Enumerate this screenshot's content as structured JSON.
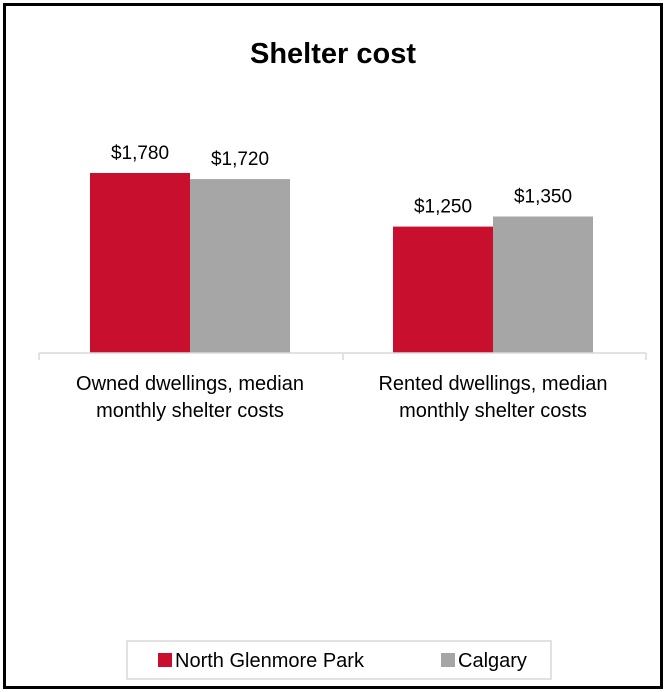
{
  "chart_data": {
    "type": "bar",
    "title": "Shelter cost",
    "categories": [
      [
        "Owned dwellings, median",
        "monthly shelter costs"
      ],
      [
        "Rented dwellings, median",
        "monthly shelter costs"
      ]
    ],
    "series": [
      {
        "name": "North Glenmore Park",
        "color": "#c8102e",
        "values": [
          1780,
          1250
        ],
        "labels": [
          "$1,780",
          "$1,250"
        ]
      },
      {
        "name": "Calgary",
        "color": "#a6a6a6",
        "values": [
          1720,
          1350
        ],
        "labels": [
          "$1,720",
          "$1,350"
        ]
      }
    ],
    "ylim": [
      0,
      2000
    ],
    "grid": false,
    "legend_position": "bottom"
  }
}
